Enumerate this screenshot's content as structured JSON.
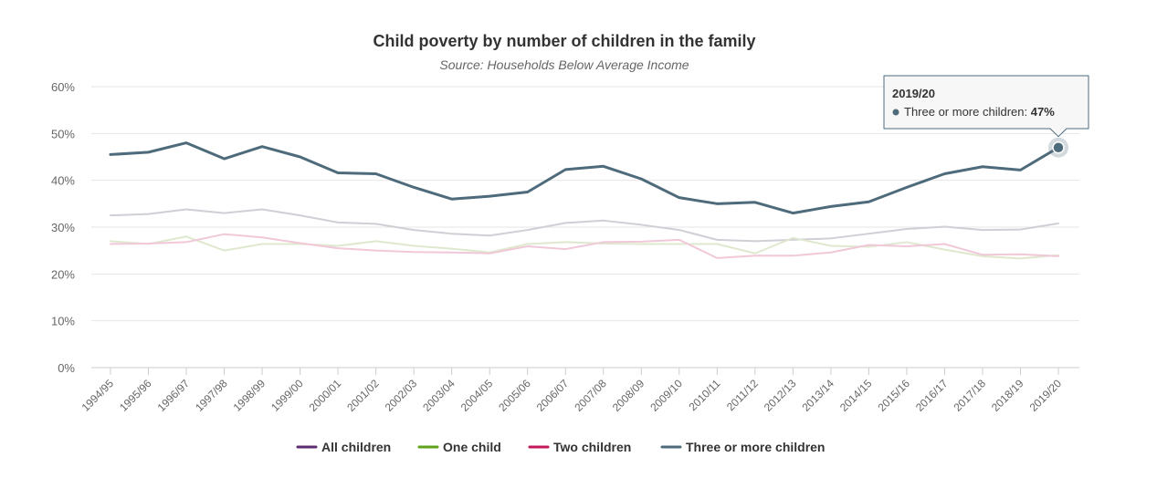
{
  "chart_data": {
    "type": "line",
    "title": "Child poverty by number of children in the family",
    "subtitle": "Source: Households Below Average Income",
    "xlabel": "",
    "ylabel": "",
    "ylim": [
      0,
      60
    ],
    "y_ticks": [
      0,
      10,
      20,
      30,
      40,
      50,
      60
    ],
    "y_tick_labels": [
      "0%",
      "10%",
      "20%",
      "30%",
      "40%",
      "50%",
      "60%"
    ],
    "grid": true,
    "legend_position": "bottom",
    "categories": [
      "1994/95",
      "1995/96",
      "1996/97",
      "1997/98",
      "1998/99",
      "1999/00",
      "2000/01",
      "2001/02",
      "2002/03",
      "2003/04",
      "2004/05",
      "2005/06",
      "2006/07",
      "2007/08",
      "2008/09",
      "2009/10",
      "2010/11",
      "2011/12",
      "2012/13",
      "2013/14",
      "2014/15",
      "2015/16",
      "2016/17",
      "2017/18",
      "2018/19",
      "2019/20"
    ],
    "series": [
      {
        "name": "All children",
        "color": "#5c2d6e",
        "plot_color": "#cfcfd6",
        "highlighted": false,
        "values": [
          32.5,
          32.8,
          33.8,
          33.0,
          33.8,
          32.5,
          31.0,
          30.7,
          29.4,
          28.6,
          28.2,
          29.4,
          30.9,
          31.4,
          30.5,
          29.4,
          27.3,
          27.0,
          27.3,
          27.6,
          28.6,
          29.6,
          30.1,
          29.4,
          29.5,
          30.8
        ]
      },
      {
        "name": "One child",
        "color": "#5fa31c",
        "plot_color": "#dfe8cf",
        "highlighted": false,
        "values": [
          27.0,
          26.4,
          28.0,
          25.0,
          26.4,
          26.4,
          26.0,
          27.0,
          26.0,
          25.4,
          24.6,
          26.4,
          26.8,
          26.5,
          26.4,
          26.4,
          26.4,
          24.4,
          27.7,
          26.0,
          25.8,
          26.8,
          25.2,
          23.8,
          23.3,
          24.0
        ]
      },
      {
        "name": "Two children",
        "color": "#c2185b",
        "plot_color": "#f0c8d8",
        "highlighted": false,
        "values": [
          26.4,
          26.5,
          26.8,
          28.5,
          27.8,
          26.6,
          25.5,
          25.0,
          24.7,
          24.6,
          24.4,
          25.9,
          25.3,
          26.8,
          26.9,
          27.3,
          23.4,
          23.9,
          23.9,
          24.6,
          26.2,
          25.9,
          26.4,
          24.1,
          24.2,
          23.8
        ]
      },
      {
        "name": "Three or more children",
        "color": "#4e6b7c",
        "plot_color": "#4e6b7c",
        "highlighted": true,
        "values": [
          45.5,
          46.0,
          48.0,
          44.6,
          47.2,
          45.0,
          41.6,
          41.4,
          38.5,
          36.0,
          36.6,
          37.5,
          42.3,
          43.0,
          40.3,
          36.3,
          35.0,
          35.3,
          33.0,
          34.4,
          35.4,
          38.5,
          41.4,
          42.9,
          42.2,
          47.0
        ]
      }
    ],
    "tooltip": {
      "category": "2019/20",
      "series_label": "Three or more children:",
      "value_label": "47%"
    }
  }
}
